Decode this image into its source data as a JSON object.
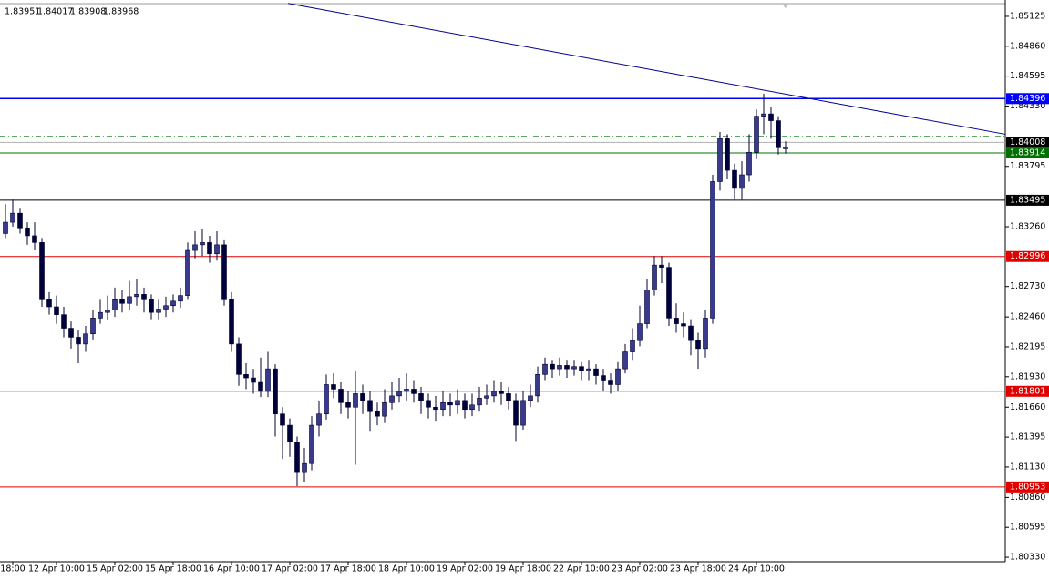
{
  "chart_data": {
    "type": "candlestick",
    "ylim": [
      1.8029,
      1.8527
    ],
    "yticks": [
      1.85125,
      {
        "value": 1.8486,
        "label": "1.84860"
      },
      1.84595,
      {
        "value": 1.8433,
        "label": "1.84330"
      },
      1.83795,
      {
        "value": 1.8326,
        "label": "1.83260"
      },
      {
        "value": 1.8273,
        "label": "1.82730"
      },
      {
        "value": 1.8246,
        "label": "1.82460"
      },
      1.82195,
      {
        "value": 1.8193,
        "label": "1.81930"
      },
      {
        "value": 1.8166,
        "label": "1.81660"
      },
      1.81395,
      {
        "value": 1.8113,
        "label": "1.81130"
      },
      {
        "value": 1.8086,
        "label": "1.80860"
      },
      1.80595,
      {
        "value": 1.8033,
        "label": "1.80330"
      }
    ],
    "categories": [
      null,
      "18:00",
      null,
      null,
      null,
      null,
      null,
      "12 Apr 10:00",
      null,
      null,
      null,
      null,
      null,
      null,
      null,
      "15 Apr 02:00",
      null,
      null,
      null,
      null,
      null,
      null,
      null,
      "15 Apr 18:00",
      null,
      null,
      null,
      null,
      null,
      null,
      null,
      "16 Apr 10:00",
      null,
      null,
      null,
      null,
      null,
      null,
      null,
      "17 Apr 02:00",
      null,
      null,
      null,
      null,
      null,
      null,
      null,
      "17 Apr 18:00",
      null,
      null,
      null,
      null,
      null,
      null,
      null,
      "18 Apr 10:00",
      null,
      null,
      null,
      null,
      null,
      null,
      null,
      "19 Apr 02:00",
      null,
      null,
      null,
      null,
      null,
      null,
      null,
      "19 Apr 18:00",
      null,
      null,
      null,
      null,
      null,
      null,
      null,
      "22 Apr 10:00",
      null,
      null,
      null,
      null,
      null,
      null,
      null,
      "23 Apr 02:00",
      null,
      null,
      null,
      null,
      null,
      null,
      null,
      "23 Apr 18:00",
      null,
      null,
      null,
      null,
      null,
      null,
      null,
      "24 Apr 10:00",
      null,
      null,
      null,
      null
    ],
    "open": [
      1.832,
      1.833,
      1.8338,
      1.8325,
      1.8318,
      1.8312,
      1.8262,
      1.8255,
      1.8248,
      1.8236,
      1.8228,
      1.8222,
      1.8231,
      1.8245,
      1.825,
      1.8252,
      1.8262,
      1.8258,
      1.8264,
      1.8266,
      1.8262,
      1.825,
      1.8253,
      1.8256,
      1.826,
      1.8265,
      1.8305,
      1.831,
      1.8312,
      1.8302,
      1.831,
      1.8262,
      1.8222,
      1.8195,
      1.8192,
      1.8188,
      1.818,
      1.82,
      1.816,
      1.815,
      1.8135,
      1.8108,
      1.8116,
      1.815,
      1.816,
      1.8186,
      1.8182,
      1.817,
      1.8166,
      1.8178,
      1.8172,
      1.8162,
      1.8158,
      1.817,
      1.8176,
      1.818,
      1.8182,
      1.8178,
      1.8172,
      1.8166,
      1.8164,
      1.817,
      1.8168,
      1.8172,
      1.8164,
      1.8168,
      1.8174,
      1.8176,
      1.818,
      1.8178,
      1.8172,
      1.815,
      1.8172,
      1.8176,
      1.8195,
      1.8204,
      1.82,
      1.8203,
      1.82,
      1.8202,
      1.8198,
      1.82,
      1.8194,
      1.819,
      1.8186,
      1.82,
      1.8215,
      1.8225,
      1.824,
      1.827,
      1.8292,
      1.829,
      1.8245,
      1.824,
      1.8238,
      1.8225,
      1.8218,
      1.8245,
      1.8366,
      1.8404,
      1.8376,
      1.836,
      1.8372,
      1.8392,
      1.8424,
      1.8426,
      1.842,
      1.83951
    ],
    "high": [
      1.8346,
      1.835,
      1.8342,
      1.833,
      1.833,
      1.8316,
      1.8268,
      1.8265,
      1.8255,
      1.8242,
      1.8234,
      1.8238,
      1.8252,
      1.8262,
      1.8265,
      1.8272,
      1.827,
      1.8278,
      1.828,
      1.8272,
      1.8266,
      1.8262,
      1.8264,
      1.8266,
      1.8272,
      1.8312,
      1.8322,
      1.8324,
      1.8318,
      1.8322,
      1.8314,
      1.8268,
      1.8228,
      1.8205,
      1.82,
      1.821,
      1.8215,
      1.8204,
      1.8166,
      1.8156,
      1.814,
      1.813,
      1.8158,
      1.8172,
      1.8195,
      1.8196,
      1.8188,
      1.818,
      1.8198,
      1.8186,
      1.818,
      1.817,
      1.8182,
      1.8188,
      1.8192,
      1.8196,
      1.819,
      1.8184,
      1.8178,
      1.8176,
      1.818,
      1.8178,
      1.8182,
      1.8178,
      1.8178,
      1.8184,
      1.8186,
      1.819,
      1.8188,
      1.8184,
      1.8178,
      1.818,
      1.8186,
      1.8202,
      1.821,
      1.8208,
      1.821,
      1.8208,
      1.8208,
      1.8206,
      1.8208,
      1.8204,
      1.82,
      1.8196,
      1.8206,
      1.8222,
      1.8236,
      1.8256,
      1.828,
      1.83,
      1.83,
      1.8294,
      1.8258,
      1.825,
      1.8244,
      1.8232,
      1.8252,
      1.8372,
      1.841,
      1.8408,
      1.8382,
      1.8384,
      1.8408,
      1.843,
      1.8444,
      1.8432,
      1.8424,
      1.84017
    ],
    "low": [
      1.8316,
      1.8326,
      1.832,
      1.831,
      1.8305,
      1.8255,
      1.8248,
      1.824,
      1.8228,
      1.8218,
      1.8205,
      1.8215,
      1.8226,
      1.824,
      1.8243,
      1.8246,
      1.825,
      1.8252,
      1.8256,
      1.825,
      1.8244,
      1.8244,
      1.8246,
      1.825,
      1.8254,
      1.8262,
      1.8298,
      1.83,
      1.8294,
      1.8296,
      1.8256,
      1.8215,
      1.8185,
      1.8182,
      1.8178,
      1.8175,
      1.8175,
      1.814,
      1.812,
      1.8122,
      1.8096,
      1.81,
      1.811,
      1.814,
      1.8155,
      1.8174,
      1.816,
      1.8156,
      1.8115,
      1.816,
      1.8145,
      1.815,
      1.8152,
      1.8164,
      1.817,
      1.8172,
      1.817,
      1.816,
      1.8156,
      1.8154,
      1.8158,
      1.8158,
      1.816,
      1.8156,
      1.8158,
      1.8162,
      1.8168,
      1.817,
      1.8168,
      1.8164,
      1.8136,
      1.8146,
      1.8166,
      1.817,
      1.819,
      1.8192,
      1.8194,
      1.8192,
      1.8194,
      1.819,
      1.819,
      1.8186,
      1.818,
      1.8178,
      1.818,
      1.8196,
      1.8208,
      1.822,
      1.8236,
      1.8265,
      1.8276,
      1.8238,
      1.8232,
      1.8228,
      1.8212,
      1.82,
      1.821,
      1.824,
      1.8358,
      1.8368,
      1.835,
      1.835,
      1.8366,
      1.8386,
      1.8408,
      1.8404,
      1.839,
      1.83908
    ],
    "close": [
      1.833,
      1.8338,
      1.8325,
      1.8318,
      1.8312,
      1.8262,
      1.8255,
      1.8248,
      1.8236,
      1.8228,
      1.8222,
      1.8231,
      1.8245,
      1.825,
      1.8252,
      1.8262,
      1.8258,
      1.8264,
      1.8266,
      1.8262,
      1.825,
      1.8253,
      1.8256,
      1.826,
      1.8265,
      1.8305,
      1.831,
      1.8312,
      1.8302,
      1.831,
      1.8262,
      1.8222,
      1.8195,
      1.8192,
      1.8188,
      1.818,
      1.82,
      1.816,
      1.815,
      1.8135,
      1.8108,
      1.8116,
      1.815,
      1.816,
      1.8186,
      1.8182,
      1.817,
      1.8166,
      1.8178,
      1.8172,
      1.8162,
      1.8158,
      1.817,
      1.8176,
      1.818,
      1.8182,
      1.8178,
      1.8172,
      1.8166,
      1.8164,
      1.817,
      1.8168,
      1.8172,
      1.8164,
      1.8168,
      1.8174,
      1.8176,
      1.818,
      1.8178,
      1.8172,
      1.815,
      1.8172,
      1.8176,
      1.8195,
      1.8204,
      1.82,
      1.8203,
      1.82,
      1.8202,
      1.8198,
      1.82,
      1.8194,
      1.819,
      1.8186,
      1.82,
      1.8215,
      1.8225,
      1.824,
      1.827,
      1.8292,
      1.829,
      1.8245,
      1.824,
      1.8238,
      1.8225,
      1.8218,
      1.8245,
      1.8366,
      1.8404,
      1.8376,
      1.836,
      1.8372,
      1.8392,
      1.8424,
      1.8426,
      1.842,
      1.8396,
      1.83968
    ],
    "bull_color": "#3a3a8c",
    "bear_color": "#00003a",
    "levels": [
      {
        "value": 1.84396,
        "color": "#0000ff"
      },
      {
        "value": 1.84008,
        "color": "#000000",
        "line_color": "#b0b0b0"
      },
      {
        "value": 1.83914,
        "color": "#007000"
      },
      {
        "value": 1.83495,
        "color": "#000000"
      },
      {
        "value": 1.82996,
        "color": "#e00000"
      },
      {
        "value": 1.81801,
        "color": "#e00000"
      },
      {
        "value": 1.80953,
        "color": "#e00000"
      }
    ],
    "dashed_level": {
      "value": 1.8406,
      "color": "#007000"
    },
    "trendline": {
      "values": [
        1.8524,
        1.8408
      ],
      "color": "#00008b"
    }
  }
}
